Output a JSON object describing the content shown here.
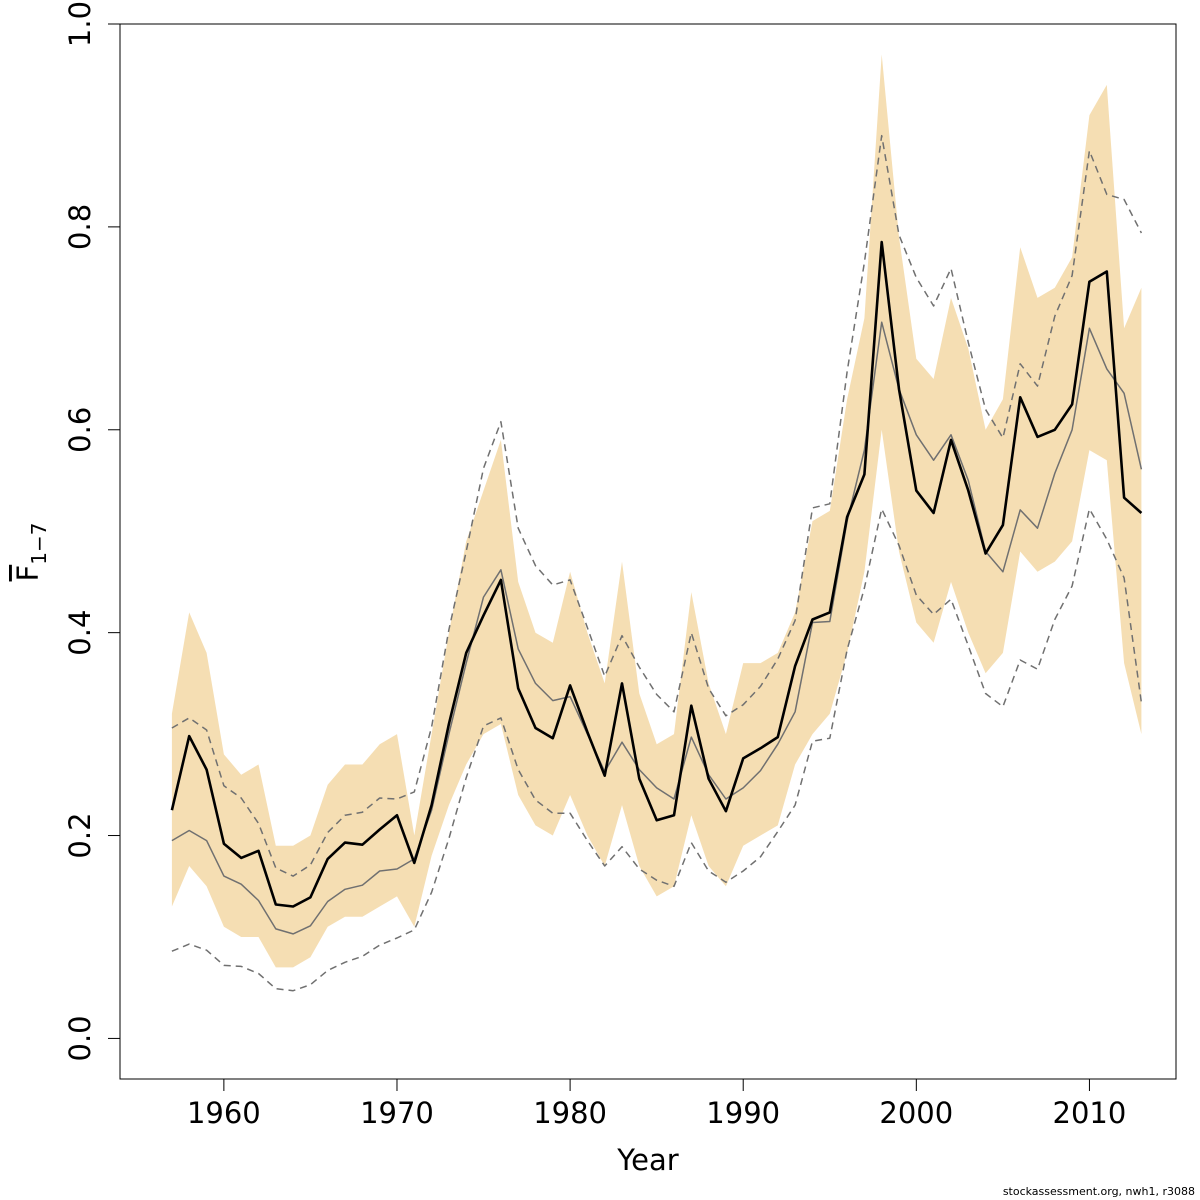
{
  "chart_data": {
    "type": "line",
    "xlabel": "Year",
    "ylabel": "F",
    "ylabel_subscript": "1−7",
    "xlim": [
      1954,
      2015
    ],
    "ylim": [
      -0.04,
      1.0
    ],
    "x_ticks": [
      1960,
      1970,
      1980,
      1990,
      2000,
      2010
    ],
    "y_ticks": [
      "0.0",
      "0.2",
      "0.4",
      "0.6",
      "0.8",
      "1.0"
    ],
    "x": [
      1957,
      1958,
      1959,
      1960,
      1961,
      1962,
      1963,
      1964,
      1965,
      1966,
      1967,
      1968,
      1969,
      1970,
      1971,
      1972,
      1973,
      1974,
      1975,
      1976,
      1977,
      1978,
      1979,
      1980,
      1981,
      1982,
      1983,
      1984,
      1985,
      1986,
      1987,
      1988,
      1989,
      1990,
      1991,
      1992,
      1993,
      1994,
      1995,
      1996,
      1997,
      1998,
      1999,
      2000,
      2001,
      2002,
      2003,
      2004,
      2005,
      2006,
      2007,
      2008,
      2009,
      2010,
      2011,
      2012,
      2013
    ],
    "band_upper": [
      0.32,
      0.42,
      0.38,
      0.28,
      0.26,
      0.27,
      0.19,
      0.19,
      0.2,
      0.25,
      0.27,
      0.27,
      0.29,
      0.3,
      0.2,
      0.3,
      0.4,
      0.49,
      0.54,
      0.59,
      0.45,
      0.4,
      0.39,
      0.46,
      0.4,
      0.35,
      0.47,
      0.34,
      0.29,
      0.3,
      0.44,
      0.35,
      0.3,
      0.37,
      0.37,
      0.38,
      0.42,
      0.51,
      0.52,
      0.63,
      0.71,
      0.97,
      0.79,
      0.67,
      0.65,
      0.73,
      0.68,
      0.6,
      0.63,
      0.78,
      0.73,
      0.74,
      0.77,
      0.91,
      0.94,
      0.7,
      0.74
    ],
    "band_lower": [
      0.13,
      0.17,
      0.15,
      0.11,
      0.1,
      0.1,
      0.07,
      0.07,
      0.08,
      0.11,
      0.12,
      0.12,
      0.13,
      0.14,
      0.11,
      0.18,
      0.23,
      0.27,
      0.3,
      0.31,
      0.24,
      0.21,
      0.2,
      0.24,
      0.2,
      0.17,
      0.23,
      0.17,
      0.14,
      0.15,
      0.22,
      0.17,
      0.15,
      0.19,
      0.2,
      0.21,
      0.27,
      0.3,
      0.32,
      0.38,
      0.46,
      0.6,
      0.48,
      0.41,
      0.39,
      0.45,
      0.4,
      0.36,
      0.38,
      0.48,
      0.46,
      0.47,
      0.49,
      0.58,
      0.57,
      0.37,
      0.3
    ],
    "series": [
      {
        "values": [
          0.225,
          0.298,
          0.265,
          0.192,
          0.178,
          0.185,
          0.132,
          0.13,
          0.139,
          0.177,
          0.193,
          0.191,
          0.206,
          0.22,
          0.173,
          0.23,
          0.31,
          0.38,
          0.417,
          0.452,
          0.345,
          0.306,
          0.296,
          0.348,
          0.302,
          0.259,
          0.35,
          0.256,
          0.215,
          0.22,
          0.328,
          0.256,
          0.224,
          0.276,
          0.286,
          0.297,
          0.367,
          0.413,
          0.42,
          0.514,
          0.556,
          0.785,
          0.64,
          0.54,
          0.518,
          0.59,
          0.54,
          0.478,
          0.506,
          0.632,
          0.593,
          0.6,
          0.625,
          0.746,
          0.756,
          0.533,
          0.518
        ],
        "color": "#000000",
        "style": "solid-thick"
      },
      {
        "values": [
          0.195,
          0.205,
          0.195,
          0.16,
          0.152,
          0.136,
          0.108,
          0.103,
          0.111,
          0.135,
          0.147,
          0.151,
          0.165,
          0.167,
          0.177,
          0.225,
          0.3,
          0.37,
          0.435,
          0.462,
          0.384,
          0.35,
          0.333,
          0.337,
          0.3,
          0.263,
          0.292,
          0.265,
          0.247,
          0.236,
          0.297,
          0.26,
          0.236,
          0.247,
          0.264,
          0.29,
          0.322,
          0.41,
          0.411,
          0.51,
          0.58,
          0.706,
          0.64,
          0.595,
          0.57,
          0.595,
          0.55,
          0.48,
          0.46,
          0.521,
          0.503,
          0.557,
          0.6,
          0.7,
          0.66,
          0.636,
          0.561
        ],
        "color": "#707070",
        "style": "solid-thin"
      },
      {
        "values": [
          0.306,
          0.316,
          0.304,
          0.249,
          0.237,
          0.212,
          0.168,
          0.16,
          0.171,
          0.203,
          0.22,
          0.223,
          0.237,
          0.236,
          0.243,
          0.307,
          0.403,
          0.48,
          0.562,
          0.608,
          0.503,
          0.466,
          0.447,
          0.452,
          0.405,
          0.357,
          0.397,
          0.366,
          0.339,
          0.322,
          0.4,
          0.345,
          0.318,
          0.329,
          0.347,
          0.374,
          0.412,
          0.523,
          0.527,
          0.657,
          0.765,
          0.89,
          0.792,
          0.75,
          0.722,
          0.759,
          0.686,
          0.62,
          0.592,
          0.665,
          0.643,
          0.712,
          0.752,
          0.875,
          0.832,
          0.827,
          0.794
        ],
        "color": "#707070",
        "style": "dashed"
      },
      {
        "values": [
          0.086,
          0.093,
          0.087,
          0.072,
          0.071,
          0.064,
          0.049,
          0.047,
          0.053,
          0.067,
          0.075,
          0.081,
          0.092,
          0.099,
          0.107,
          0.144,
          0.197,
          0.257,
          0.308,
          0.316,
          0.265,
          0.235,
          0.222,
          0.222,
          0.195,
          0.17,
          0.189,
          0.167,
          0.156,
          0.15,
          0.193,
          0.165,
          0.154,
          0.165,
          0.179,
          0.204,
          0.23,
          0.293,
          0.296,
          0.383,
          0.444,
          0.522,
          0.486,
          0.437,
          0.418,
          0.433,
          0.387,
          0.34,
          0.327,
          0.373,
          0.364,
          0.413,
          0.446,
          0.522,
          0.492,
          0.454,
          0.331
        ],
        "color": "#707070",
        "style": "dashed"
      }
    ],
    "band_color": "#F5DEB3",
    "grid": false,
    "legend": "none"
  },
  "footer": "stockassessment.org, nwh1, r3088"
}
